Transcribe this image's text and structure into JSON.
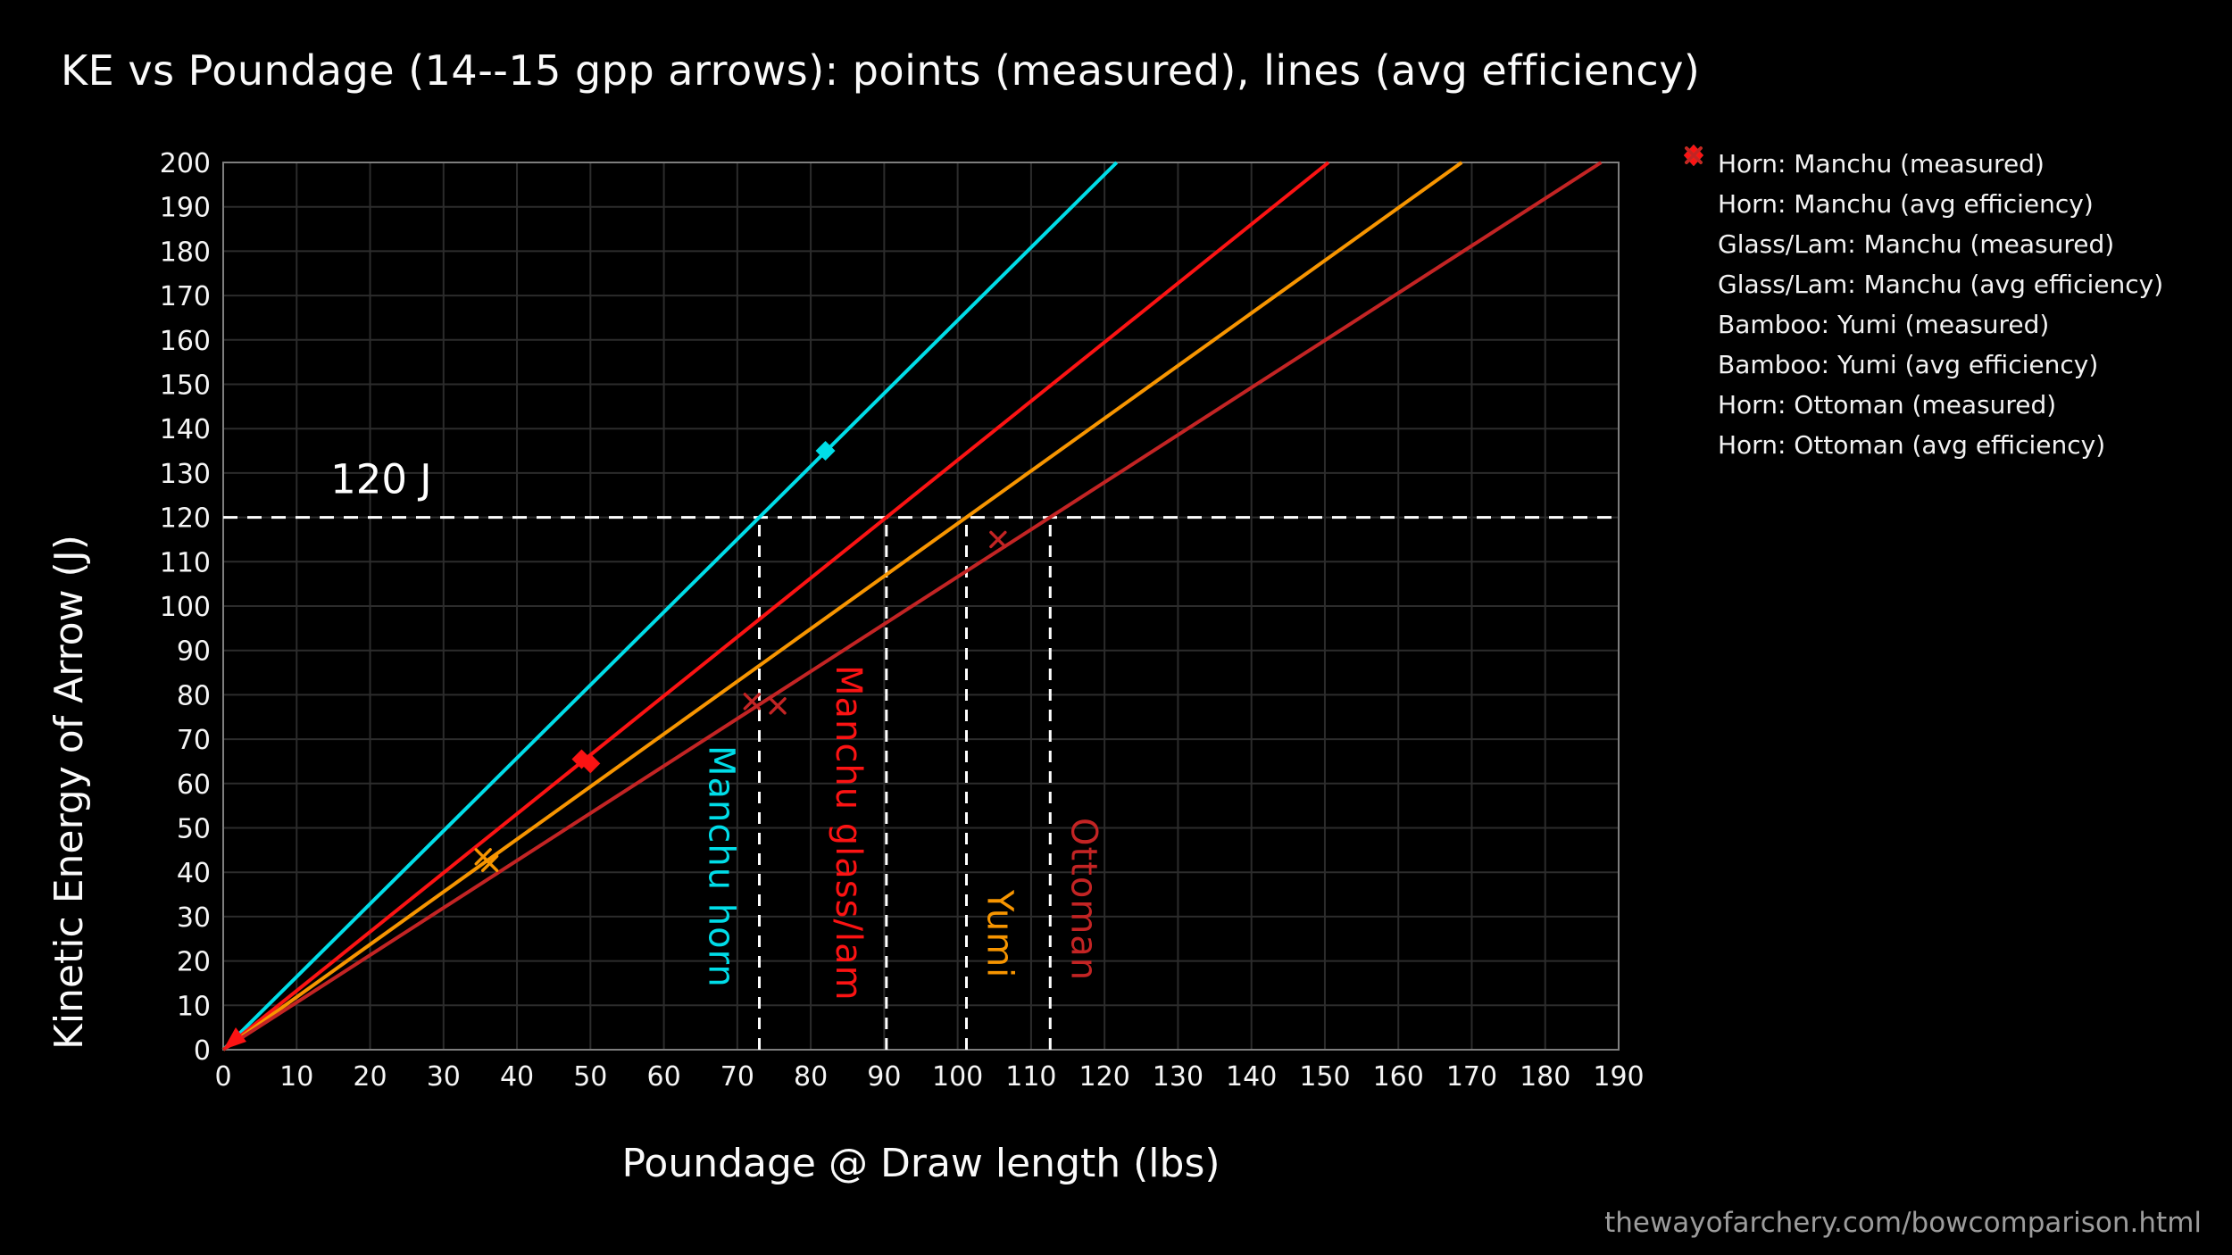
{
  "title": "KE vs Poundage (14--15 gpp arrows): points (measured), lines (avg efficiency)",
  "footer": "thewayofarchery.com/bowcomparison.html",
  "colors": {
    "background": "#000000",
    "grid": "#2c2c2c",
    "spine": "#7e7e7e",
    "tick_text": "#f5f5f5",
    "reference_dash": "#ffffff",
    "cyan": "#00dde8",
    "red": "#fb1313",
    "orange": "#f79500",
    "dark_red": "#c32424",
    "footer_gray": "#9c9c9c"
  },
  "chart_data": {
    "type": "scatter",
    "title": "KE vs Poundage (14--15 gpp arrows): points (measured), lines (avg efficiency)",
    "xlabel": "Poundage @ Draw length (lbs)",
    "ylabel": "Kinetic Energy of Arrow (J)",
    "xlim": [
      0,
      190
    ],
    "ylim": [
      0,
      200
    ],
    "xtick_step": 10,
    "ytick_step": 10,
    "grid": true,
    "legend_position": "upper right outside",
    "reference_line": {
      "label": "120 J",
      "y": 120,
      "label_x": 14.6,
      "label_y": 125.5
    },
    "series": [
      {
        "name": "Horn: Manchu (measured)",
        "marker": "diamond",
        "color": "#00dde8",
        "points": [
          [
            82,
            135
          ]
        ]
      },
      {
        "name": "Horn: Manchu (avg efficiency)",
        "marker": "diamond",
        "color": "#00dde8",
        "line": true,
        "slope_j_per_lb": 1.644
      },
      {
        "name": "Glass/Lam: Manchu (measured)",
        "marker": "diamond",
        "color": "#fb1313",
        "points": [
          [
            48.8,
            65.5
          ],
          [
            50.0,
            64.5
          ]
        ]
      },
      {
        "name": "Glass/Lam: Manchu (avg efficiency)",
        "marker": "diamond",
        "color": "#fb1313",
        "line": true,
        "slope_j_per_lb": 1.329
      },
      {
        "name": "Bamboo: Yumi (measured)",
        "marker": "x",
        "color": "#f79500",
        "points": [
          [
            35.4,
            43.5
          ],
          [
            36.3,
            42.0
          ]
        ]
      },
      {
        "name": "Bamboo: Yumi (avg efficiency)",
        "marker": "x",
        "color": "#f79500",
        "line": true,
        "slope_j_per_lb": 1.186
      },
      {
        "name": "Horn: Ottoman (measured)",
        "marker": "x",
        "color": "#c32424",
        "points": [
          [
            72.0,
            78.5
          ],
          [
            75.5,
            77.5
          ],
          [
            105.5,
            115.0
          ]
        ]
      },
      {
        "name": "Horn: Ottoman (avg efficiency)",
        "marker": "x",
        "color": "#c32424",
        "line": true,
        "slope_j_per_lb": 1.066
      }
    ],
    "vlines_poundage_at_120J": [
      {
        "label": "Manchu horn",
        "x": 73.0,
        "color": "#00dde8",
        "label_side": "left",
        "label_bottom": 14.0
      },
      {
        "label": "Manchu glass/lam",
        "x": 90.3,
        "color": "#fb1313",
        "label_side": "left",
        "label_bottom": 11.0
      },
      {
        "label": "Yumi",
        "x": 101.2,
        "color": "#f79500",
        "label_side": "right",
        "label_bottom": 16.0
      },
      {
        "label": "Ottoman",
        "x": 112.6,
        "color": "#c32424",
        "label_side": "right",
        "label_bottom": 15.5
      }
    ],
    "origin_arrow_color": "#fb1313"
  }
}
